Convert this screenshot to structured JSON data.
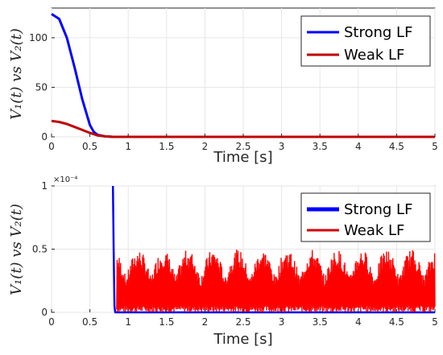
{
  "chart_data": [
    {
      "type": "line",
      "xlabel": "Time [s]",
      "ylabel": "V₁(t) vs V₂(t)",
      "xlim": [
        0,
        5
      ],
      "ylim": [
        0,
        130
      ],
      "x_ticks": [
        "0",
        "0.5",
        "1",
        "1.5",
        "2",
        "2.5",
        "3",
        "3.5",
        "4",
        "4.5",
        "5"
      ],
      "y_ticks": [
        "0",
        "50",
        "100"
      ],
      "grid": true,
      "legend_position": "top-right",
      "series": [
        {
          "name": "Strong LF",
          "color": "#0000ff",
          "x": [
            0,
            0.1,
            0.2,
            0.3,
            0.4,
            0.5,
            0.55,
            0.6,
            0.7,
            0.8,
            1.0,
            5.0
          ],
          "y": [
            124,
            119,
            100,
            70,
            38,
            12,
            5,
            2,
            0.5,
            0,
            0,
            0
          ]
        },
        {
          "name": "Weak LF",
          "color": "#c00000",
          "x": [
            0,
            0.1,
            0.2,
            0.3,
            0.4,
            0.5,
            0.6,
            0.7,
            0.8,
            1.0,
            5.0
          ],
          "y": [
            16,
            15,
            13,
            10,
            7,
            4,
            1.5,
            0.5,
            0,
            0,
            0
          ]
        }
      ]
    },
    {
      "type": "line",
      "xlabel": "Time [s]",
      "ylabel": "V₁(t) vs V₂(t)",
      "y_exponent": "×10⁻⁴",
      "xlim": [
        0,
        5
      ],
      "ylim": [
        0,
        1
      ],
      "x_ticks": [
        "0",
        "0.5",
        "1",
        "1.5",
        "2",
        "2.5",
        "3",
        "3.5",
        "4",
        "4.5",
        "5"
      ],
      "y_ticks": [
        "0",
        "0.5",
        "1"
      ],
      "grid": true,
      "legend_position": "top-right",
      "series": [
        {
          "name": "Strong LF",
          "color": "#0000ff",
          "x": [
            0.8,
            0.81,
            0.82,
            0.83,
            5.0
          ],
          "y": [
            1.0,
            0.5,
            0.05,
            0.0,
            0.0
          ]
        },
        {
          "name": "Weak LF",
          "color": "#ff0000",
          "x_start": 0.85,
          "x_end": 5.0,
          "noise_min": 0.0,
          "noise_max": 0.5,
          "note_band": "dense oscillation between about 0 and 0.5 (×10⁻⁴)"
        }
      ]
    }
  ]
}
